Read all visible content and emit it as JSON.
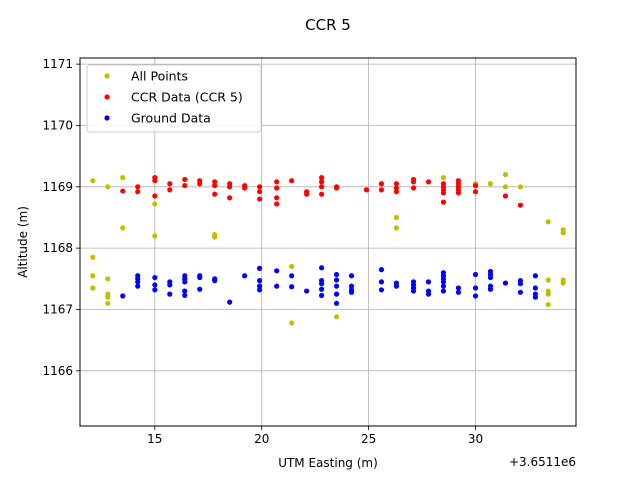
{
  "chart_data": {
    "type": "scatter",
    "title": "CCR 5",
    "xlabel": "UTM Easting (m)",
    "ylabel": "Altitude (m)",
    "offset_label": "+3.6511e6",
    "xlim": [
      11.5,
      34.7
    ],
    "ylim": [
      1165.1,
      1171.1
    ],
    "xticks": [
      15,
      20,
      25,
      30
    ],
    "yticks": [
      1166,
      1167,
      1168,
      1169,
      1170,
      1171
    ],
    "grid": true,
    "legend_position": "top-left",
    "series": [
      {
        "name": "All Points",
        "color": "#bfbf00",
        "points": [
          [
            12.1,
            1169.1
          ],
          [
            12.1,
            1167.85
          ],
          [
            12.1,
            1167.55
          ],
          [
            12.1,
            1167.35
          ],
          [
            12.8,
            1169.0
          ],
          [
            12.8,
            1167.5
          ],
          [
            12.8,
            1167.25
          ],
          [
            12.8,
            1167.2
          ],
          [
            12.8,
            1167.1
          ],
          [
            13.5,
            1169.15
          ],
          [
            13.5,
            1168.33
          ],
          [
            15.0,
            1168.72
          ],
          [
            15.0,
            1168.2
          ],
          [
            17.8,
            1168.22
          ],
          [
            17.8,
            1168.18
          ],
          [
            21.4,
            1167.7
          ],
          [
            21.4,
            1166.78
          ],
          [
            23.5,
            1166.88
          ],
          [
            26.3,
            1168.5
          ],
          [
            26.3,
            1168.33
          ],
          [
            28.5,
            1169.15
          ],
          [
            30.0,
            1169.05
          ],
          [
            30.7,
            1169.05
          ],
          [
            31.4,
            1169.2
          ],
          [
            31.4,
            1169.0
          ],
          [
            32.1,
            1169.0
          ],
          [
            33.4,
            1168.43
          ],
          [
            33.4,
            1167.48
          ],
          [
            33.4,
            1167.3
          ],
          [
            33.4,
            1167.25
          ],
          [
            33.4,
            1167.08
          ],
          [
            34.1,
            1168.3
          ],
          [
            34.1,
            1168.25
          ],
          [
            34.1,
            1167.48
          ],
          [
            34.1,
            1167.43
          ]
        ]
      },
      {
        "name": "CCR Data (CCR 5)",
        "color": "#ff0000",
        "points": [
          [
            13.5,
            1168.93
          ],
          [
            14.2,
            1169.0
          ],
          [
            14.2,
            1168.92
          ],
          [
            15.0,
            1169.15
          ],
          [
            15.0,
            1169.1
          ],
          [
            15.0,
            1168.85
          ],
          [
            15.7,
            1169.05
          ],
          [
            15.7,
            1168.95
          ],
          [
            16.4,
            1169.12
          ],
          [
            16.4,
            1169.02
          ],
          [
            17.1,
            1169.1
          ],
          [
            17.1,
            1169.05
          ],
          [
            17.8,
            1169.08
          ],
          [
            17.8,
            1169.02
          ],
          [
            17.8,
            1168.88
          ],
          [
            18.5,
            1169.05
          ],
          [
            18.5,
            1169.0
          ],
          [
            18.5,
            1168.82
          ],
          [
            19.2,
            1169.02
          ],
          [
            19.2,
            1168.98
          ],
          [
            19.9,
            1169.0
          ],
          [
            19.9,
            1168.92
          ],
          [
            19.9,
            1168.8
          ],
          [
            20.7,
            1169.08
          ],
          [
            20.7,
            1168.98
          ],
          [
            20.7,
            1168.82
          ],
          [
            20.7,
            1168.72
          ],
          [
            21.4,
            1169.1
          ],
          [
            22.1,
            1168.92
          ],
          [
            22.1,
            1168.88
          ],
          [
            22.8,
            1169.15
          ],
          [
            22.8,
            1169.08
          ],
          [
            22.8,
            1169.0
          ],
          [
            22.8,
            1168.88
          ],
          [
            23.5,
            1169.0
          ],
          [
            23.5,
            1168.98
          ],
          [
            24.9,
            1168.95
          ],
          [
            25.6,
            1169.05
          ],
          [
            25.6,
            1168.95
          ],
          [
            26.3,
            1169.05
          ],
          [
            26.3,
            1168.98
          ],
          [
            26.3,
            1168.92
          ],
          [
            27.1,
            1169.12
          ],
          [
            27.1,
            1169.08
          ],
          [
            27.1,
            1168.98
          ],
          [
            27.8,
            1169.08
          ],
          [
            28.5,
            1169.05
          ],
          [
            28.5,
            1169.0
          ],
          [
            28.5,
            1168.95
          ],
          [
            28.5,
            1168.9
          ],
          [
            28.5,
            1168.75
          ],
          [
            29.2,
            1169.1
          ],
          [
            29.2,
            1169.05
          ],
          [
            29.2,
            1169.0
          ],
          [
            29.2,
            1168.95
          ],
          [
            29.2,
            1168.9
          ],
          [
            30.0,
            1169.02
          ],
          [
            30.0,
            1168.92
          ],
          [
            31.4,
            1168.85
          ],
          [
            32.1,
            1168.7
          ]
        ]
      },
      {
        "name": "Ground Data",
        "color": "#0000ff",
        "points": [
          [
            13.5,
            1167.22
          ],
          [
            14.2,
            1167.55
          ],
          [
            14.2,
            1167.5
          ],
          [
            14.2,
            1167.45
          ],
          [
            14.2,
            1167.38
          ],
          [
            15.0,
            1167.52
          ],
          [
            15.0,
            1167.4
          ],
          [
            15.0,
            1167.32
          ],
          [
            15.7,
            1167.45
          ],
          [
            15.7,
            1167.4
          ],
          [
            15.7,
            1167.25
          ],
          [
            16.4,
            1167.55
          ],
          [
            16.4,
            1167.5
          ],
          [
            16.4,
            1167.45
          ],
          [
            16.4,
            1167.3
          ],
          [
            16.4,
            1167.23
          ],
          [
            17.1,
            1167.55
          ],
          [
            17.1,
            1167.52
          ],
          [
            17.1,
            1167.33
          ],
          [
            17.8,
            1167.5
          ],
          [
            17.8,
            1167.47
          ],
          [
            18.5,
            1167.12
          ],
          [
            19.2,
            1167.55
          ],
          [
            19.9,
            1167.67
          ],
          [
            19.9,
            1167.47
          ],
          [
            19.9,
            1167.38
          ],
          [
            19.9,
            1167.32
          ],
          [
            20.7,
            1167.63
          ],
          [
            20.7,
            1167.38
          ],
          [
            21.4,
            1167.55
          ],
          [
            21.4,
            1167.37
          ],
          [
            22.1,
            1167.3
          ],
          [
            22.8,
            1167.68
          ],
          [
            22.8,
            1167.47
          ],
          [
            22.8,
            1167.42
          ],
          [
            22.8,
            1167.33
          ],
          [
            22.8,
            1167.23
          ],
          [
            23.5,
            1167.57
          ],
          [
            23.5,
            1167.48
          ],
          [
            23.5,
            1167.38
          ],
          [
            23.5,
            1167.25
          ],
          [
            23.5,
            1167.1
          ],
          [
            24.2,
            1167.55
          ],
          [
            24.2,
            1167.38
          ],
          [
            24.2,
            1167.32
          ],
          [
            24.2,
            1167.28
          ],
          [
            25.6,
            1167.65
          ],
          [
            25.6,
            1167.45
          ],
          [
            25.6,
            1167.32
          ],
          [
            26.3,
            1167.43
          ],
          [
            26.3,
            1167.38
          ],
          [
            27.1,
            1167.45
          ],
          [
            27.1,
            1167.4
          ],
          [
            27.1,
            1167.35
          ],
          [
            27.1,
            1167.3
          ],
          [
            27.8,
            1167.45
          ],
          [
            27.8,
            1167.3
          ],
          [
            27.8,
            1167.25
          ],
          [
            28.5,
            1167.6
          ],
          [
            28.5,
            1167.55
          ],
          [
            28.5,
            1167.5
          ],
          [
            28.5,
            1167.45
          ],
          [
            28.5,
            1167.38
          ],
          [
            28.5,
            1167.3
          ],
          [
            29.2,
            1167.35
          ],
          [
            29.2,
            1167.28
          ],
          [
            30.0,
            1167.57
          ],
          [
            30.0,
            1167.35
          ],
          [
            30.0,
            1167.22
          ],
          [
            30.7,
            1167.62
          ],
          [
            30.7,
            1167.57
          ],
          [
            30.7,
            1167.52
          ],
          [
            30.7,
            1167.38
          ],
          [
            30.7,
            1167.33
          ],
          [
            31.4,
            1167.43
          ],
          [
            32.1,
            1167.47
          ],
          [
            32.1,
            1167.42
          ],
          [
            32.1,
            1167.28
          ],
          [
            32.8,
            1167.55
          ],
          [
            32.8,
            1167.35
          ],
          [
            32.8,
            1167.25
          ],
          [
            32.8,
            1167.2
          ]
        ]
      }
    ]
  }
}
